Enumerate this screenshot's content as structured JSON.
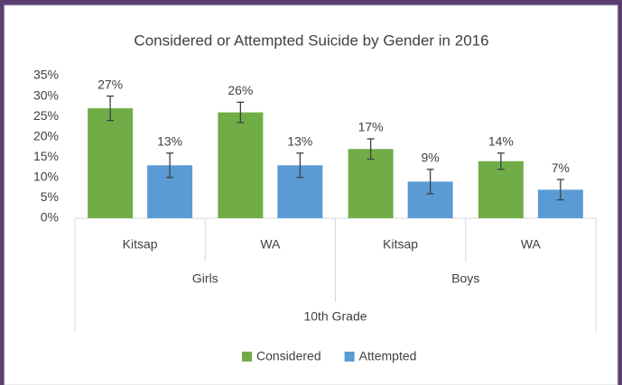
{
  "chart_data": {
    "type": "bar",
    "title": "Considered or Attempted Suicide by Gender in 2016",
    "axis_group": "10th Grade",
    "groups": [
      {
        "label": "Girls",
        "categories": [
          "Kitsap",
          "WA"
        ]
      },
      {
        "label": "Boys",
        "categories": [
          "Kitsap",
          "WA"
        ]
      }
    ],
    "series": [
      {
        "name": "Considered",
        "color": "#70ad47",
        "values": [
          27,
          26,
          17,
          14
        ],
        "value_labels": [
          "27%",
          "26%",
          "17%",
          "14%"
        ],
        "errors": [
          3,
          2.5,
          2.5,
          2
        ]
      },
      {
        "name": "Attempted",
        "color": "#5b9bd5",
        "values": [
          13,
          13,
          9,
          7
        ],
        "value_labels": [
          "13%",
          "13%",
          "9%",
          "7%"
        ],
        "errors": [
          3,
          3,
          3,
          2.5
        ]
      }
    ],
    "ylim": [
      0,
      35
    ],
    "yticks": [
      {
        "value": 0,
        "label": "0%"
      },
      {
        "value": 5,
        "label": "5%"
      },
      {
        "value": 10,
        "label": "10%"
      },
      {
        "value": 15,
        "label": "15%"
      },
      {
        "value": 20,
        "label": "20%"
      },
      {
        "value": 25,
        "label": "25%"
      },
      {
        "value": 30,
        "label": "30%"
      },
      {
        "value": 35,
        "label": "35%"
      }
    ],
    "legend": "bottom"
  }
}
